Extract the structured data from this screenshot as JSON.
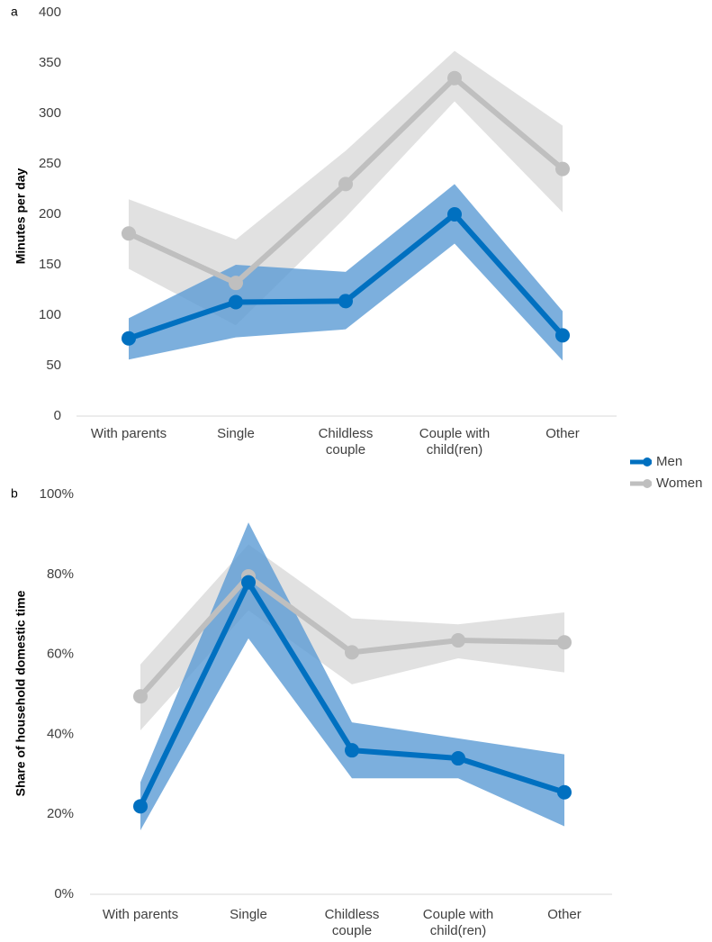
{
  "chart_data": [
    {
      "type": "line",
      "label": "a",
      "ylabel": "Minutes per day",
      "categories": [
        "With parents",
        "Single",
        "Childless couple",
        "Couple with child(ren)",
        "Other"
      ],
      "ylim": [
        0,
        400
      ],
      "yticks": [
        0,
        50,
        100,
        150,
        200,
        250,
        300,
        350,
        400
      ],
      "series": [
        {
          "name": "Men",
          "color": "#0070c0",
          "band_color": "#5b9bd5",
          "values": [
            77,
            113,
            114,
            200,
            80
          ],
          "lower": [
            56,
            78,
            86,
            171,
            55
          ],
          "upper": [
            97,
            150,
            143,
            230,
            104
          ]
        },
        {
          "name": "Women",
          "color": "#bfbfbf",
          "band_color": "#d9d9d9",
          "values": [
            181,
            132,
            230,
            335,
            245
          ],
          "lower": [
            146,
            90,
            197,
            312,
            202
          ],
          "upper": [
            215,
            175,
            263,
            362,
            288
          ]
        }
      ]
    },
    {
      "type": "line",
      "label": "b",
      "ylabel": "Share of household domestic time",
      "categories": [
        "With parents",
        "Single",
        "Childless couple",
        "Couple with child(ren)",
        "Other"
      ],
      "ylim": [
        0,
        100
      ],
      "yticks": [
        {
          "value": 0,
          "label": "0%"
        },
        {
          "value": 20,
          "label": "20%"
        },
        {
          "value": 40,
          "label": "40%"
        },
        {
          "value": 60,
          "label": "60%"
        },
        {
          "value": 80,
          "label": "80%"
        },
        {
          "value": 100,
          "label": "100%"
        }
      ],
      "series": [
        {
          "name": "Men",
          "color": "#0070c0",
          "band_color": "#5b9bd5",
          "values": [
            22,
            78,
            36,
            34,
            25.5
          ],
          "lower": [
            16,
            64,
            29,
            29,
            17
          ],
          "upper": [
            28,
            93,
            43,
            39,
            35
          ]
        },
        {
          "name": "Women",
          "color": "#bfbfbf",
          "band_color": "#d9d9d9",
          "values": [
            49.5,
            79.5,
            60.5,
            63.5,
            63
          ],
          "lower": [
            41,
            71,
            52.5,
            59,
            55.5
          ],
          "upper": [
            57.5,
            87.5,
            69,
            67.5,
            70.5
          ]
        }
      ]
    }
  ]
}
